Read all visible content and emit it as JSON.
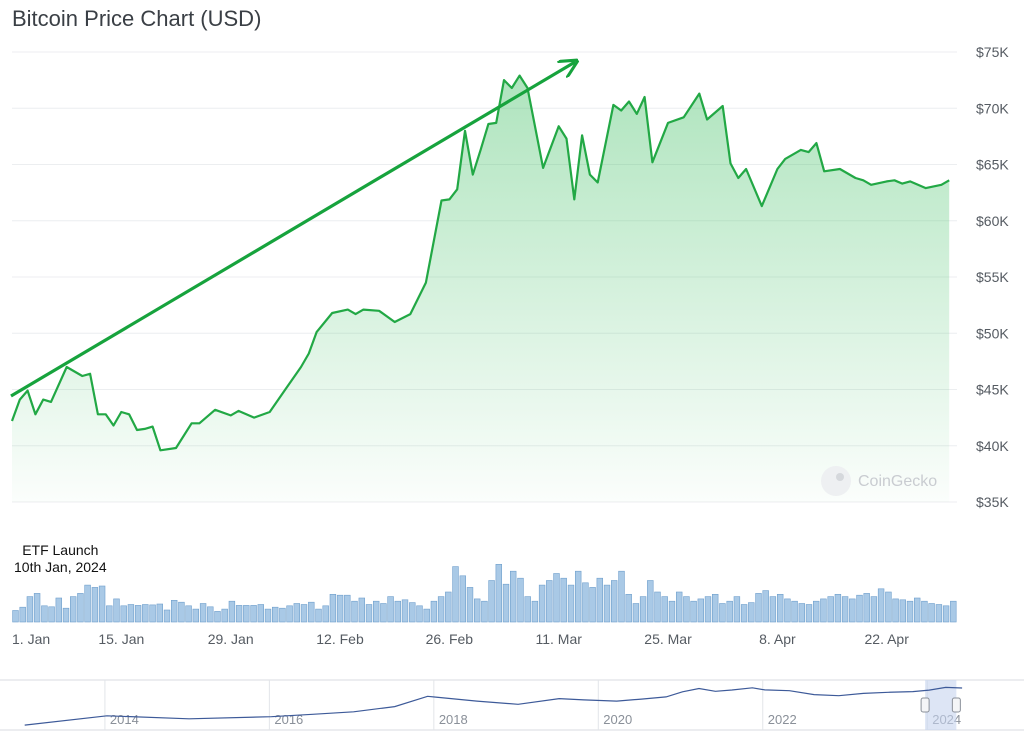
{
  "title": "Bitcoin Price Chart (USD)",
  "annotation": {
    "line1": "ETF Launch",
    "line2": "10th Jan, 2024"
  },
  "watermark": "CoinGecko",
  "colors": {
    "price_line": "#22a845",
    "arrow": "#17a33d",
    "volume_bar": "#a9c9e6",
    "navigator_line": "#3d5a99"
  },
  "chart_data": [
    {
      "type": "area",
      "title": "Bitcoin Price Chart (USD)",
      "x_tick_labels": [
        "1. Jan",
        "15. Jan",
        "29. Jan",
        "12. Feb",
        "26. Feb",
        "11. Mar",
        "25. Mar",
        "8. Apr",
        "22. Apr"
      ],
      "y_tick_labels": [
        "$35K",
        "$40K",
        "$45K",
        "$50K",
        "$55K",
        "$60K",
        "$65K",
        "$70K",
        "$75K"
      ],
      "ylim": [
        35000,
        75000
      ],
      "xlim": [
        "2024-01-01",
        "2024-05-01"
      ],
      "grid": true,
      "series": [
        {
          "x": [
            "2024-01-01",
            "2024-01-02",
            "2024-01-03",
            "2024-01-04",
            "2024-01-05",
            "2024-01-06",
            "2024-01-08",
            "2024-01-10",
            "2024-01-11",
            "2024-01-12",
            "2024-01-13",
            "2024-01-14",
            "2024-01-15",
            "2024-01-16",
            "2024-01-17",
            "2024-01-18",
            "2024-01-19",
            "2024-01-20",
            "2024-01-22",
            "2024-01-24",
            "2024-01-25",
            "2024-01-27",
            "2024-01-29",
            "2024-01-30",
            "2024-02-01",
            "2024-02-03",
            "2024-02-05",
            "2024-02-07",
            "2024-02-08",
            "2024-02-09",
            "2024-02-11",
            "2024-02-13",
            "2024-02-14",
            "2024-02-15",
            "2024-02-17",
            "2024-02-19",
            "2024-02-21",
            "2024-02-23",
            "2024-02-25",
            "2024-02-26",
            "2024-02-27",
            "2024-02-28",
            "2024-02-29",
            "2024-03-01",
            "2024-03-02",
            "2024-03-03",
            "2024-03-04",
            "2024-03-05",
            "2024-03-06",
            "2024-03-07",
            "2024-03-09",
            "2024-03-11",
            "2024-03-12",
            "2024-03-13",
            "2024-03-14",
            "2024-03-15",
            "2024-03-16",
            "2024-03-18",
            "2024-03-19",
            "2024-03-20",
            "2024-03-21",
            "2024-03-22",
            "2024-03-23",
            "2024-03-25",
            "2024-03-27",
            "2024-03-29",
            "2024-03-30",
            "2024-04-01",
            "2024-04-02",
            "2024-04-03",
            "2024-04-04",
            "2024-04-06",
            "2024-04-08",
            "2024-04-09",
            "2024-04-11",
            "2024-04-12",
            "2024-04-13",
            "2024-04-14",
            "2024-04-16",
            "2024-04-18",
            "2024-04-19",
            "2024-04-20",
            "2024-04-22",
            "2024-04-23",
            "2024-04-24",
            "2024-04-25",
            "2024-04-27",
            "2024-04-29",
            "2024-04-30"
          ],
          "y": [
            42200,
            44100,
            44900,
            42800,
            44100,
            43900,
            47000,
            46200,
            46400,
            42800,
            42800,
            41800,
            43000,
            42800,
            41400,
            41500,
            41700,
            39600,
            39800,
            42000,
            42000,
            43200,
            42700,
            43100,
            42500,
            43000,
            45000,
            47000,
            48200,
            50100,
            51800,
            52100,
            51700,
            52100,
            52000,
            51000,
            51700,
            54500,
            61800,
            61900,
            62800,
            68000,
            64100,
            66300,
            68600,
            68700,
            72500,
            71800,
            72900,
            71800,
            64700,
            68400,
            67300,
            61900,
            67600,
            64100,
            63400,
            70300,
            69800,
            70600,
            69500,
            71000,
            65200,
            68700,
            69200,
            71300,
            69000,
            70200,
            65100,
            63800,
            64600,
            61300,
            64600,
            65500,
            66300,
            66100,
            66900,
            64400,
            64600,
            63800,
            63600,
            63200,
            63500,
            63600,
            63300,
            63500,
            62900,
            63200,
            63600
          ]
        }
      ]
    },
    {
      "type": "bar",
      "title": "",
      "x_tick_labels": [
        "1. Jan",
        "15. Jan",
        "29. Jan",
        "12. Feb",
        "26. Feb",
        "11. Mar",
        "25. Mar",
        "8. Apr",
        "22. Apr"
      ],
      "values": [
        0.25,
        0.32,
        0.55,
        0.62,
        0.35,
        0.33,
        0.52,
        0.3,
        0.55,
        0.62,
        0.8,
        0.75,
        0.78,
        0.35,
        0.5,
        0.35,
        0.38,
        0.36,
        0.38,
        0.37,
        0.39,
        0.26,
        0.47,
        0.43,
        0.35,
        0.28,
        0.4,
        0.33,
        0.23,
        0.28,
        0.45,
        0.36,
        0.36,
        0.36,
        0.38,
        0.28,
        0.32,
        0.3,
        0.35,
        0.4,
        0.38,
        0.43,
        0.28,
        0.35,
        0.6,
        0.58,
        0.58,
        0.45,
        0.52,
        0.38,
        0.45,
        0.4,
        0.55,
        0.45,
        0.48,
        0.42,
        0.35,
        0.28,
        0.45,
        0.55,
        0.65,
        1.2,
        1.0,
        0.75,
        0.5,
        0.45,
        0.9,
        1.25,
        0.82,
        1.1,
        0.95,
        0.55,
        0.45,
        0.8,
        0.9,
        1.05,
        0.95,
        0.8,
        1.1,
        0.85,
        0.75,
        0.95,
        0.8,
        0.9,
        1.1,
        0.6,
        0.4,
        0.55,
        0.9,
        0.65,
        0.55,
        0.45,
        0.65,
        0.55,
        0.45,
        0.5,
        0.55,
        0.6,
        0.4,
        0.45,
        0.55,
        0.38,
        0.42,
        0.62,
        0.68,
        0.55,
        0.6,
        0.5,
        0.45,
        0.4,
        0.38,
        0.45,
        0.5,
        0.55,
        0.6,
        0.55,
        0.5,
        0.58,
        0.62,
        0.55,
        0.72,
        0.65,
        0.5,
        0.48,
        0.45,
        0.52,
        0.45,
        0.4,
        0.38,
        0.35,
        0.45
      ],
      "ylim": [
        0,
        1.3
      ]
    },
    {
      "type": "line",
      "title": "",
      "x_tick_labels": [
        "2014",
        "2016",
        "2018",
        "2020",
        "2022",
        "2024"
      ],
      "x": [
        2013.0,
        2014.0,
        2015.0,
        2016.0,
        2016.5,
        2017.0,
        2017.5,
        2017.9,
        2018.0,
        2018.5,
        2019.0,
        2019.5,
        2019.8,
        2020.0,
        2020.2,
        2020.5,
        2020.8,
        2021.0,
        2021.2,
        2021.4,
        2021.6,
        2021.85,
        2022.0,
        2022.3,
        2022.6,
        2022.9,
        2023.2,
        2023.5,
        2023.8,
        2024.0,
        2024.2,
        2024.4
      ],
      "y": [
        100,
        500,
        300,
        430,
        650,
        1000,
        2500,
        15000,
        13000,
        6500,
        3700,
        10000,
        8000,
        7200,
        6500,
        9200,
        13500,
        33000,
        58000,
        36000,
        45000,
        66000,
        46000,
        40000,
        20000,
        16500,
        25000,
        30000,
        34000,
        44000,
        70000,
        64000
      ]
    }
  ]
}
